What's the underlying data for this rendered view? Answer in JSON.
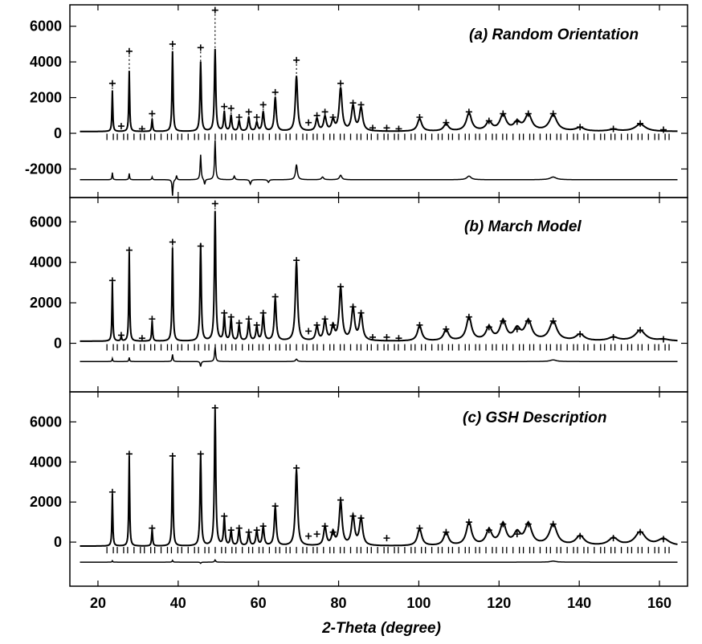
{
  "chart_data": {
    "type": "line",
    "xlabel": "2-Theta (degree)",
    "xlim": [
      13,
      167
    ],
    "x_ticks": [
      "20",
      "40",
      "60",
      "80",
      "100",
      "120",
      "140",
      "160"
    ],
    "x_tick_values": [
      20,
      40,
      60,
      80,
      100,
      120,
      140,
      160
    ],
    "panels": [
      {
        "id": "a",
        "title": "(a) Random Orientation",
        "ylim": [
          -3600,
          7200
        ],
        "y_ticks": [
          "6000",
          "4000",
          "2000",
          "0",
          "-2000"
        ],
        "y_tick_values": [
          6000,
          4000,
          2000,
          0,
          -2000
        ],
        "baseline": 100,
        "diff_offset": -2600,
        "diff_peaks": [
          [
            23.6,
            400
          ],
          [
            27.8,
            350
          ],
          [
            33.5,
            150
          ],
          [
            38.6,
            -900
          ],
          [
            39.6,
            250
          ],
          [
            45.6,
            1400
          ],
          [
            46.6,
            -300
          ],
          [
            49.2,
            2200
          ],
          [
            54,
            200
          ],
          [
            58,
            -250
          ],
          [
            62.5,
            -150
          ],
          [
            69.5,
            850
          ],
          [
            76,
            150
          ],
          [
            80.5,
            250
          ],
          [
            112.5,
            200
          ],
          [
            133.5,
            150
          ]
        ],
        "obs_peaks": [
          [
            23.6,
            2800
          ],
          [
            25.8,
            400
          ],
          [
            27.8,
            4600
          ],
          [
            31,
            250
          ],
          [
            33.5,
            1100
          ],
          [
            38.6,
            5000
          ],
          [
            45.6,
            4800
          ],
          [
            49.2,
            6900
          ],
          [
            51.5,
            1500
          ],
          [
            53.2,
            1400
          ],
          [
            55.2,
            900
          ],
          [
            57.6,
            1200
          ],
          [
            59.6,
            900
          ],
          [
            61.2,
            1600
          ],
          [
            64.2,
            2300
          ],
          [
            69.5,
            4100
          ],
          [
            72.5,
            600
          ],
          [
            74.6,
            1000
          ],
          [
            76.6,
            1200
          ],
          [
            78.6,
            900
          ],
          [
            80.5,
            2800
          ],
          [
            83.6,
            1700
          ],
          [
            85.6,
            1600
          ],
          [
            88.5,
            300
          ],
          [
            92,
            300
          ],
          [
            95,
            250
          ],
          [
            100.2,
            900
          ],
          [
            106.8,
            600
          ],
          [
            112.5,
            1200
          ],
          [
            117.5,
            700
          ],
          [
            121,
            1100
          ],
          [
            124.5,
            650
          ],
          [
            127.3,
            1100
          ],
          [
            133.5,
            1100
          ],
          [
            140.2,
            350
          ],
          [
            148.5,
            250
          ],
          [
            155.2,
            550
          ],
          [
            161,
            200
          ]
        ],
        "calc_peaks": [
          [
            23.6,
            2400
          ],
          [
            27.8,
            3500
          ],
          [
            33.5,
            800
          ],
          [
            38.6,
            4600
          ],
          [
            45.6,
            4000
          ],
          [
            49.2,
            4700
          ],
          [
            51.5,
            1200
          ],
          [
            53.2,
            1000
          ],
          [
            55.2,
            700
          ],
          [
            57.6,
            900
          ],
          [
            59.6,
            600
          ],
          [
            61.2,
            1200
          ],
          [
            64.2,
            2000
          ],
          [
            69.5,
            3200
          ],
          [
            74.6,
            800
          ],
          [
            76.6,
            900
          ],
          [
            78.6,
            700
          ],
          [
            80.5,
            2500
          ],
          [
            83.6,
            1500
          ],
          [
            85.6,
            1400
          ],
          [
            100.2,
            800
          ],
          [
            106.8,
            500
          ],
          [
            112.5,
            1100
          ],
          [
            117.5,
            600
          ],
          [
            121,
            1000
          ],
          [
            124.5,
            550
          ],
          [
            127.3,
            1000
          ],
          [
            133.5,
            1000
          ],
          [
            140.2,
            300
          ],
          [
            148.5,
            200
          ],
          [
            155.2,
            500
          ]
        ],
        "tick_row_y": -200
      },
      {
        "id": "b",
        "title": "(b) March Model",
        "ylim": [
          -2400,
          7200
        ],
        "y_ticks": [
          "6000",
          "4000",
          "2000",
          "0"
        ],
        "y_tick_values": [
          6000,
          4000,
          2000,
          0
        ],
        "baseline": 100,
        "diff_offset": -900,
        "diff_peaks": [
          [
            23.6,
            150
          ],
          [
            27.8,
            200
          ],
          [
            38.6,
            350
          ],
          [
            45.6,
            -250
          ],
          [
            49.2,
            700
          ],
          [
            69.5,
            120
          ],
          [
            133.5,
            80
          ]
        ],
        "obs_peaks": [
          [
            23.6,
            3100
          ],
          [
            25.8,
            400
          ],
          [
            27.8,
            4600
          ],
          [
            31,
            250
          ],
          [
            33.5,
            1200
          ],
          [
            38.6,
            5000
          ],
          [
            45.6,
            4800
          ],
          [
            49.2,
            6900
          ],
          [
            51.5,
            1500
          ],
          [
            53.2,
            1300
          ],
          [
            55.2,
            1000
          ],
          [
            57.6,
            1200
          ],
          [
            59.6,
            900
          ],
          [
            61.2,
            1500
          ],
          [
            64.2,
            2300
          ],
          [
            69.5,
            4100
          ],
          [
            72.5,
            600
          ],
          [
            74.6,
            900
          ],
          [
            76.6,
            1200
          ],
          [
            78.6,
            900
          ],
          [
            80.5,
            2800
          ],
          [
            83.6,
            1800
          ],
          [
            85.6,
            1500
          ],
          [
            88.5,
            300
          ],
          [
            92,
            300
          ],
          [
            95,
            250
          ],
          [
            100.2,
            900
          ],
          [
            106.8,
            700
          ],
          [
            112.5,
            1300
          ],
          [
            117.5,
            800
          ],
          [
            121,
            1100
          ],
          [
            124.5,
            700
          ],
          [
            127.3,
            1100
          ],
          [
            133.5,
            1100
          ],
          [
            140.2,
            450
          ],
          [
            148.5,
            300
          ],
          [
            155.2,
            650
          ],
          [
            161,
            200
          ]
        ],
        "calc_peaks": [
          [
            23.6,
            3000
          ],
          [
            25.8,
            350
          ],
          [
            27.8,
            4500
          ],
          [
            33.5,
            1100
          ],
          [
            38.6,
            4700
          ],
          [
            45.6,
            4900
          ],
          [
            49.2,
            6500
          ],
          [
            51.5,
            1400
          ],
          [
            53.2,
            1200
          ],
          [
            55.2,
            900
          ],
          [
            57.6,
            1100
          ],
          [
            59.6,
            800
          ],
          [
            61.2,
            1400
          ],
          [
            64.2,
            2200
          ],
          [
            69.5,
            4000
          ],
          [
            74.6,
            800
          ],
          [
            76.6,
            1100
          ],
          [
            78.6,
            800
          ],
          [
            80.5,
            2700
          ],
          [
            83.6,
            1700
          ],
          [
            85.6,
            1400
          ],
          [
            100.2,
            850
          ],
          [
            106.8,
            650
          ],
          [
            112.5,
            1250
          ],
          [
            117.5,
            750
          ],
          [
            121,
            1050
          ],
          [
            124.5,
            650
          ],
          [
            127.3,
            1050
          ],
          [
            133.5,
            1050
          ],
          [
            140.2,
            420
          ],
          [
            148.5,
            280
          ],
          [
            155.2,
            620
          ],
          [
            161,
            180
          ]
        ],
        "tick_row_y": -200
      },
      {
        "id": "c",
        "title": "(c) GSH Description",
        "ylim": [
          -2200,
          7500
        ],
        "y_ticks": [
          "6000",
          "4000",
          "2000",
          "0"
        ],
        "y_tick_values": [
          6000,
          4000,
          2000,
          0
        ],
        "baseline": -200,
        "diff_offset": -1000,
        "diff_peaks": [
          [
            23.6,
            70
          ],
          [
            38.6,
            90
          ],
          [
            45.6,
            -60
          ],
          [
            49.2,
            110
          ],
          [
            133.5,
            50
          ]
        ],
        "obs_peaks": [
          [
            23.6,
            2500
          ],
          [
            27.8,
            4400
          ],
          [
            33.5,
            700
          ],
          [
            38.6,
            4300
          ],
          [
            45.6,
            4400
          ],
          [
            49.2,
            6700
          ],
          [
            51.5,
            1300
          ],
          [
            53.2,
            600
          ],
          [
            55.2,
            700
          ],
          [
            57.6,
            500
          ],
          [
            59.6,
            600
          ],
          [
            61.2,
            800
          ],
          [
            64.2,
            1800
          ],
          [
            69.5,
            3700
          ],
          [
            72.5,
            300
          ],
          [
            74.6,
            400
          ],
          [
            76.6,
            800
          ],
          [
            78.6,
            500
          ],
          [
            80.5,
            2100
          ],
          [
            83.6,
            1300
          ],
          [
            85.6,
            1200
          ],
          [
            92,
            200
          ],
          [
            100.2,
            700
          ],
          [
            106.8,
            500
          ],
          [
            112.5,
            1000
          ],
          [
            117.5,
            600
          ],
          [
            121,
            900
          ],
          [
            124.5,
            400
          ],
          [
            127.3,
            900
          ],
          [
            133.5,
            900
          ],
          [
            140.2,
            300
          ],
          [
            148.5,
            200
          ],
          [
            155.2,
            500
          ],
          [
            161,
            150
          ]
        ],
        "calc_peaks": [
          [
            23.6,
            2400
          ],
          [
            27.8,
            4300
          ],
          [
            33.5,
            650
          ],
          [
            38.6,
            4200
          ],
          [
            45.6,
            4400
          ],
          [
            49.2,
            6600
          ],
          [
            51.5,
            1250
          ],
          [
            53.2,
            550
          ],
          [
            55.2,
            650
          ],
          [
            57.6,
            450
          ],
          [
            59.6,
            550
          ],
          [
            61.2,
            750
          ],
          [
            64.2,
            1750
          ],
          [
            69.5,
            3600
          ],
          [
            76.6,
            750
          ],
          [
            78.6,
            450
          ],
          [
            80.5,
            2000
          ],
          [
            83.6,
            1250
          ],
          [
            85.6,
            1150
          ],
          [
            100.2,
            650
          ],
          [
            106.8,
            450
          ],
          [
            112.5,
            950
          ],
          [
            117.5,
            550
          ],
          [
            121,
            850
          ],
          [
            124.5,
            380
          ],
          [
            127.3,
            850
          ],
          [
            133.5,
            850
          ],
          [
            140.2,
            280
          ],
          [
            148.5,
            180
          ],
          [
            155.2,
            480
          ],
          [
            161,
            140
          ]
        ],
        "tick_row_y": -400
      }
    ]
  }
}
